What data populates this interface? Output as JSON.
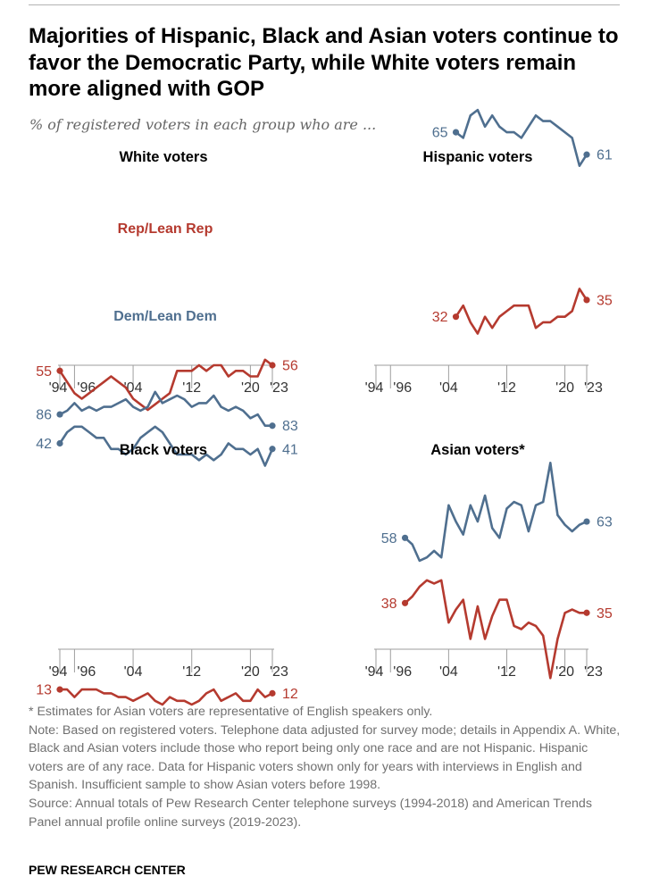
{
  "header": {
    "title": "Majorities of Hispanic, Black and Asian voters continue to favor the Democratic Party, while White voters remain more aligned with GOP",
    "subtitle": "% of registered voters in each group who are ..."
  },
  "colors": {
    "rep": "#b53a2f",
    "dem": "#4f6f8f",
    "axis": "#9e9e9e",
    "tick_text": "#333333"
  },
  "series_labels": {
    "rep": "Rep/Lean Rep",
    "dem": "Dem/Lean Dem"
  },
  "chart_data": [
    {
      "type": "line",
      "title": "White voters",
      "xlim": [
        1994,
        2023
      ],
      "ylim": [
        0,
        100
      ],
      "xticks": [
        1994,
        1996,
        2004,
        2012,
        2020,
        2023
      ],
      "xtick_labels": [
        "'94",
        "'96",
        "'04",
        "'12",
        "'20",
        "'23"
      ],
      "series": [
        {
          "name": "Rep/Lean Rep",
          "key": "rep",
          "x": [
            1994,
            1995,
            1996,
            1997,
            1998,
            1999,
            2000,
            2001,
            2002,
            2003,
            2004,
            2005,
            2006,
            2007,
            2008,
            2009,
            2010,
            2011,
            2012,
            2013,
            2014,
            2015,
            2016,
            2017,
            2018,
            2019,
            2020,
            2021,
            2022,
            2023
          ],
          "y": [
            55,
            53,
            51,
            50,
            51,
            52,
            53,
            54,
            53,
            52,
            50,
            49,
            48,
            49,
            50,
            51,
            55,
            55,
            55,
            56,
            55,
            56,
            56,
            54,
            55,
            55,
            54,
            54,
            57,
            56
          ],
          "start_label": "55",
          "end_label": "56"
        },
        {
          "name": "Dem/Lean Dem",
          "key": "dem",
          "x": [
            1994,
            1995,
            1996,
            1997,
            1998,
            1999,
            2000,
            2001,
            2002,
            2003,
            2004,
            2005,
            2006,
            2007,
            2008,
            2009,
            2010,
            2011,
            2012,
            2013,
            2014,
            2015,
            2016,
            2017,
            2018,
            2019,
            2020,
            2021,
            2022,
            2023
          ],
          "y": [
            42,
            44,
            45,
            45,
            44,
            43,
            43,
            41,
            41,
            40,
            41,
            43,
            44,
            45,
            44,
            42,
            40,
            40,
            40,
            39,
            40,
            39,
            40,
            42,
            41,
            41,
            40,
            41,
            38,
            41
          ],
          "start_label": "42",
          "end_label": "41"
        }
      ]
    },
    {
      "type": "line",
      "title": "Hispanic voters",
      "xlim": [
        1994,
        2023
      ],
      "ylim": [
        0,
        100
      ],
      "xticks": [
        1994,
        1996,
        2004,
        2012,
        2020,
        2023
      ],
      "xtick_labels": [
        "'94",
        "'96",
        "'04",
        "'12",
        "'20",
        "'23"
      ],
      "series": [
        {
          "name": "Dem/Lean Dem",
          "key": "dem",
          "x": [
            2005,
            2006,
            2007,
            2008,
            2009,
            2010,
            2011,
            2012,
            2013,
            2014,
            2015,
            2016,
            2017,
            2018,
            2019,
            2020,
            2021,
            2022,
            2023
          ],
          "y": [
            65,
            64,
            68,
            69,
            66,
            68,
            66,
            65,
            65,
            64,
            66,
            68,
            67,
            67,
            66,
            65,
            64,
            59,
            61
          ],
          "start_label": "65",
          "end_label": "61"
        },
        {
          "name": "Rep/Lean Rep",
          "key": "rep",
          "x": [
            2005,
            2006,
            2007,
            2008,
            2009,
            2010,
            2011,
            2012,
            2013,
            2014,
            2015,
            2016,
            2017,
            2018,
            2019,
            2020,
            2021,
            2022,
            2023
          ],
          "y": [
            32,
            34,
            31,
            29,
            32,
            30,
            32,
            33,
            34,
            34,
            34,
            30,
            31,
            31,
            32,
            32,
            33,
            37,
            35
          ],
          "start_label": "32",
          "end_label": "35"
        }
      ]
    },
    {
      "type": "line",
      "title": "Black voters",
      "xlim": [
        1994,
        2023
      ],
      "ylim": [
        0,
        100
      ],
      "xticks": [
        1994,
        1996,
        2004,
        2012,
        2020,
        2023
      ],
      "xtick_labels": [
        "'94",
        "'96",
        "'04",
        "'12",
        "'20",
        "'23"
      ],
      "series": [
        {
          "name": "Dem/Lean Dem",
          "key": "dem",
          "x": [
            1994,
            1995,
            1996,
            1997,
            1998,
            1999,
            2000,
            2001,
            2002,
            2003,
            2004,
            2005,
            2006,
            2007,
            2008,
            2009,
            2010,
            2011,
            2012,
            2013,
            2014,
            2015,
            2016,
            2017,
            2018,
            2019,
            2020,
            2021,
            2022,
            2023
          ],
          "y": [
            86,
            87,
            89,
            87,
            88,
            87,
            88,
            88,
            89,
            90,
            88,
            87,
            88,
            92,
            89,
            90,
            91,
            90,
            88,
            89,
            89,
            91,
            88,
            87,
            88,
            87,
            85,
            86,
            83,
            83
          ],
          "start_label": "86",
          "end_label": "83"
        },
        {
          "name": "Rep/Lean Rep",
          "key": "rep",
          "x": [
            1994,
            1995,
            1996,
            1997,
            1998,
            1999,
            2000,
            2001,
            2002,
            2003,
            2004,
            2005,
            2006,
            2007,
            2008,
            2009,
            2010,
            2011,
            2012,
            2013,
            2014,
            2015,
            2016,
            2017,
            2018,
            2019,
            2020,
            2021,
            2022,
            2023
          ],
          "y": [
            13,
            13,
            11,
            13,
            13,
            13,
            12,
            12,
            11,
            11,
            10,
            11,
            12,
            10,
            9,
            11,
            10,
            10,
            9,
            10,
            12,
            13,
            10,
            11,
            12,
            10,
            10,
            13,
            11,
            12
          ],
          "start_label": "13",
          "end_label": "12"
        }
      ]
    },
    {
      "type": "line",
      "title": "Asian voters*",
      "xlim": [
        1994,
        2023
      ],
      "ylim": [
        0,
        100
      ],
      "xticks": [
        1994,
        1996,
        2004,
        2012,
        2020,
        2023
      ],
      "xtick_labels": [
        "'94",
        "'96",
        "'04",
        "'12",
        "'20",
        "'23"
      ],
      "series": [
        {
          "name": "Dem/Lean Dem",
          "key": "dem",
          "x": [
            1998,
            1999,
            2000,
            2001,
            2002,
            2003,
            2004,
            2005,
            2006,
            2007,
            2008,
            2009,
            2010,
            2011,
            2012,
            2013,
            2014,
            2015,
            2016,
            2017,
            2018,
            2019,
            2020,
            2021,
            2022,
            2023
          ],
          "y": [
            58,
            56,
            51,
            52,
            54,
            52,
            68,
            63,
            59,
            68,
            63,
            71,
            61,
            58,
            67,
            69,
            68,
            60,
            68,
            69,
            81,
            65,
            62,
            60,
            62,
            63
          ],
          "start_label": "58",
          "end_label": "63"
        },
        {
          "name": "Rep/Lean Rep",
          "key": "rep",
          "x": [
            1998,
            1999,
            2000,
            2001,
            2002,
            2003,
            2004,
            2005,
            2006,
            2007,
            2008,
            2009,
            2010,
            2011,
            2012,
            2013,
            2014,
            2015,
            2016,
            2017,
            2018,
            2019,
            2020,
            2021,
            2022,
            2023
          ],
          "y": [
            38,
            40,
            43,
            45,
            44,
            45,
            32,
            36,
            39,
            27,
            37,
            27,
            34,
            39,
            39,
            31,
            30,
            32,
            31,
            28,
            15,
            27,
            35,
            36,
            35,
            35
          ],
          "start_label": "38",
          "end_label": "35"
        }
      ]
    }
  ],
  "notes": {
    "asterisk": "* Estimates for Asian voters are representative of English speakers only.",
    "note": "Note: Based on registered voters. Telephone data adjusted for survey mode; details in Appendix A. White, Black and Asian voters include those who report being only one race and are not Hispanic. Hispanic voters are of any race. Data for Hispanic voters shown only for years with interviews in English and Spanish. Insufficient sample to show Asian voters before 1998.",
    "source": "Source: Annual totals of Pew Research Center telephone surveys (1994-2018) and American Trends Panel annual profile online surveys (2019-2023)."
  },
  "footer": {
    "credit": "PEW RESEARCH CENTER"
  }
}
